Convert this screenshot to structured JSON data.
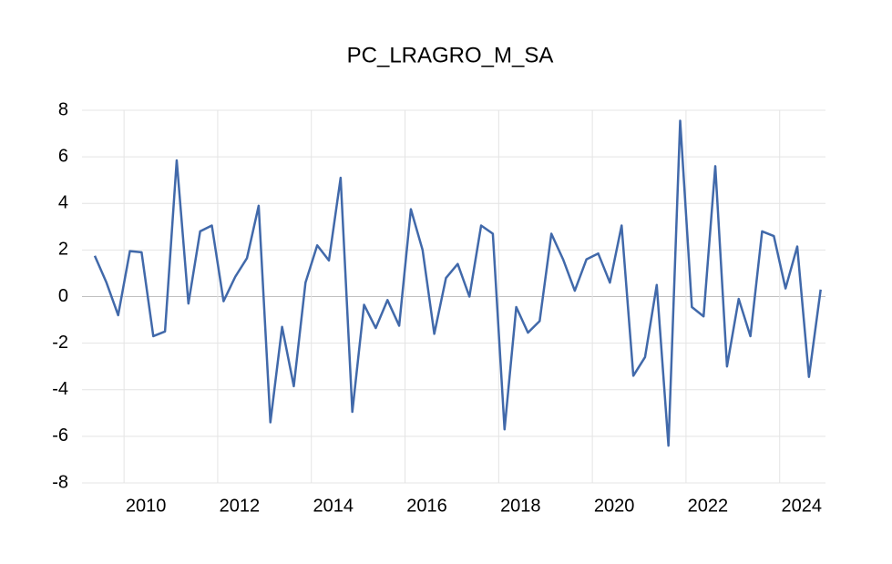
{
  "chart_data": {
    "type": "line",
    "title": "PC_LRAGRO_M_SA",
    "categories": [
      null,
      null,
      null,
      "2010",
      null,
      null,
      null,
      null,
      null,
      null,
      null,
      "2012",
      null,
      null,
      null,
      null,
      null,
      null,
      null,
      "2014",
      null,
      null,
      null,
      null,
      null,
      null,
      null,
      "2016",
      null,
      null,
      null,
      null,
      null,
      null,
      null,
      "2018",
      null,
      null,
      null,
      null,
      null,
      null,
      null,
      "2020",
      null,
      null,
      null,
      null,
      null,
      null,
      null,
      "2022",
      null,
      null,
      null,
      null,
      null,
      null,
      null,
      "2024",
      null,
      null,
      null
    ],
    "series": [
      {
        "name": "PC_LRAGRO_M_SA",
        "color": "#4169aa",
        "values": [
          1.75,
          0.6,
          -0.8,
          1.95,
          1.9,
          -1.7,
          -1.5,
          5.85,
          -0.3,
          2.8,
          3.05,
          -0.2,
          0.85,
          1.65,
          3.9,
          -5.4,
          -1.3,
          -3.85,
          0.6,
          2.2,
          1.55,
          5.1,
          -4.95,
          -0.35,
          -1.35,
          -0.15,
          -1.25,
          3.75,
          2.0,
          -1.6,
          0.8,
          1.4,
          0.0,
          3.05,
          2.7,
          -5.7,
          -0.45,
          -1.55,
          -1.05,
          2.7,
          1.6,
          0.25,
          1.6,
          1.85,
          0.6,
          3.05,
          -3.4,
          -2.6,
          0.5,
          -6.4,
          7.55,
          -0.45,
          -0.85,
          5.6,
          -3.0,
          -0.1,
          -1.7,
          2.8,
          2.6,
          0.35,
          2.15,
          -3.45,
          0.3
        ]
      }
    ],
    "ylim": [
      -8,
      8
    ],
    "yticks": [
      -8,
      -6,
      -4,
      -2,
      0,
      2,
      4,
      6,
      8
    ],
    "grid": true
  }
}
